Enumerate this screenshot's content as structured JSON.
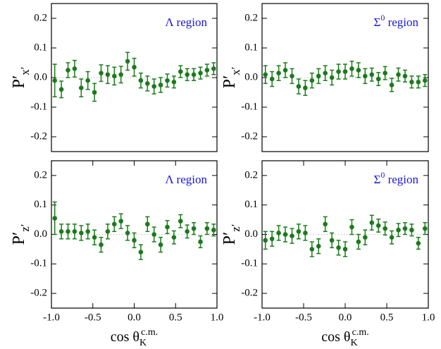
{
  "chart_data": [
    {
      "type": "scatter",
      "color": "#1b7a1b",
      "zero_line": true,
      "ylabel": {
        "base": "P′",
        "sub": "x′"
      },
      "annotation": {
        "base": "Λ region"
      },
      "x": [
        -0.96,
        -0.88,
        -0.8,
        -0.72,
        -0.64,
        -0.56,
        -0.48,
        -0.4,
        -0.32,
        -0.24,
        -0.16,
        -0.08,
        0,
        0.08,
        0.16,
        0.24,
        0.32,
        0.4,
        0.48,
        0.56,
        0.64,
        0.72,
        0.8,
        0.88,
        0.96
      ],
      "values": [
        -0.01,
        -0.04,
        0.025,
        0.03,
        -0.035,
        -0.01,
        -0.05,
        0.015,
        0.01,
        0.005,
        0.01,
        0.055,
        0.035,
        -0.01,
        -0.02,
        -0.03,
        -0.025,
        -0.01,
        -0.015,
        0.02,
        0.01,
        0.01,
        0.015,
        0.025,
        0.03
      ],
      "errors": [
        0.055,
        0.028,
        0.025,
        0.028,
        0.03,
        0.03,
        0.03,
        0.028,
        0.03,
        0.03,
        0.028,
        0.03,
        0.03,
        0.025,
        0.025,
        0.025,
        0.025,
        0.022,
        0.02,
        0.02,
        0.02,
        0.02,
        0.02,
        0.02,
        0.02
      ],
      "xlim": [
        -1,
        1
      ],
      "ylim": [
        -0.25,
        0.25
      ],
      "yticks": [
        -0.2,
        -0.1,
        {
          "value": 0,
          "label": "0.0"
        },
        0.1,
        0.2
      ]
    },
    {
      "type": "scatter",
      "color": "#1b7a1b",
      "zero_line": true,
      "ylabel": {
        "base": "P′",
        "sub": "x′"
      },
      "annotation": {
        "base": "Σ",
        "sup": "0",
        "rest": " region"
      },
      "x": [
        -0.96,
        -0.88,
        -0.8,
        -0.72,
        -0.64,
        -0.56,
        -0.48,
        -0.4,
        -0.32,
        -0.24,
        -0.16,
        -0.08,
        0,
        0.08,
        0.16,
        0.24,
        0.32,
        0.4,
        0.48,
        0.56,
        0.64,
        0.72,
        0.8,
        0.88,
        0.96
      ],
      "values": [
        0.01,
        -0.005,
        0.015,
        0.025,
        0.005,
        -0.03,
        -0.035,
        -0.01,
        0.005,
        0.015,
        0.0,
        0.02,
        0.02,
        0.03,
        0.025,
        0.005,
        0.01,
        -0.005,
        0.015,
        -0.025,
        0.01,
        0.005,
        -0.015,
        -0.015,
        -0.01
      ],
      "errors": [
        0.03,
        0.025,
        0.025,
        0.025,
        0.025,
        0.025,
        0.025,
        0.025,
        0.025,
        0.025,
        0.025,
        0.025,
        0.025,
        0.025,
        0.025,
        0.025,
        0.022,
        0.022,
        0.022,
        0.022,
        0.022,
        0.02,
        0.02,
        0.02,
        0.02
      ],
      "xlim": [
        -1,
        1
      ],
      "ylim": [
        -0.25,
        0.25
      ],
      "yticks": [
        -0.2,
        -0.1,
        {
          "value": 0,
          "label": "0.0"
        },
        0.1,
        0.2
      ]
    },
    {
      "type": "scatter",
      "color": "#1b7a1b",
      "zero_line": true,
      "ylabel": {
        "base": "P′",
        "sub": "z′"
      },
      "annotation": {
        "base": "Λ region"
      },
      "xlabel": {
        "base": "cos θ",
        "sub": "K",
        "sup": "c.m."
      },
      "x": [
        -0.96,
        -0.88,
        -0.8,
        -0.72,
        -0.64,
        -0.56,
        -0.48,
        -0.4,
        -0.32,
        -0.24,
        -0.16,
        -0.08,
        0,
        0.08,
        0.16,
        0.24,
        0.32,
        0.4,
        0.48,
        0.56,
        0.64,
        0.72,
        0.8,
        0.88,
        0.96
      ],
      "values": [
        0.055,
        0.01,
        0.01,
        0.01,
        0.005,
        0.01,
        -0.01,
        -0.035,
        0.01,
        0.035,
        0.045,
        0.005,
        -0.02,
        -0.06,
        0.035,
        0.0,
        -0.035,
        0.025,
        -0.01,
        0.045,
        0.01,
        0.02,
        -0.025,
        0.02,
        0.015
      ],
      "errors": [
        0.055,
        0.025,
        0.025,
        0.025,
        0.025,
        0.025,
        0.025,
        0.025,
        0.025,
        0.025,
        0.025,
        0.025,
        0.025,
        0.025,
        0.025,
        0.025,
        0.025,
        0.022,
        0.022,
        0.022,
        0.022,
        0.02,
        0.02,
        0.02,
        0.02
      ],
      "xlim": [
        -1,
        1
      ],
      "ylim": [
        -0.25,
        0.25
      ],
      "yticks": [
        -0.2,
        -0.1,
        {
          "value": 0,
          "label": "0.0"
        },
        0.1,
        0.2
      ],
      "xticks": [
        {
          "value": -1,
          "label": "-1.0"
        },
        -0.5,
        {
          "value": 0,
          "label": "0.0"
        },
        0.5,
        {
          "value": 1,
          "label": "1.0"
        }
      ]
    },
    {
      "type": "scatter",
      "color": "#1b7a1b",
      "zero_line": true,
      "ylabel": {
        "base": "P′",
        "sub": "z′"
      },
      "annotation": {
        "base": "Σ",
        "sup": "0",
        "rest": " region"
      },
      "xlabel": {
        "base": "cos θ",
        "sub": "K",
        "sup": "c.m."
      },
      "x": [
        -0.96,
        -0.88,
        -0.8,
        -0.72,
        -0.64,
        -0.56,
        -0.48,
        -0.4,
        -0.32,
        -0.24,
        -0.16,
        -0.08,
        0,
        0.08,
        0.16,
        0.24,
        0.32,
        0.4,
        0.48,
        0.56,
        0.64,
        0.72,
        0.8,
        0.88,
        0.96
      ],
      "values": [
        -0.02,
        -0.015,
        0.005,
        0.0,
        -0.005,
        0.01,
        0.005,
        -0.05,
        -0.04,
        0.035,
        -0.02,
        -0.045,
        -0.05,
        0.025,
        -0.025,
        -0.01,
        0.04,
        0.03,
        0.02,
        -0.01,
        0.015,
        0.02,
        0.015,
        -0.03,
        0.02
      ],
      "errors": [
        0.03,
        0.025,
        0.025,
        0.025,
        0.025,
        0.025,
        0.025,
        0.025,
        0.025,
        0.025,
        0.025,
        0.025,
        0.025,
        0.025,
        0.025,
        0.025,
        0.025,
        0.022,
        0.022,
        0.022,
        0.022,
        0.02,
        0.02,
        0.02,
        0.02
      ],
      "xlim": [
        -1,
        1
      ],
      "ylim": [
        -0.25,
        0.25
      ],
      "yticks": [
        -0.2,
        -0.1,
        {
          "value": 0,
          "label": "0.0"
        },
        0.1,
        0.2
      ],
      "xticks": [
        {
          "value": -1,
          "label": "-1.0"
        },
        -0.5,
        {
          "value": 0,
          "label": "0.0"
        },
        0.5,
        {
          "value": 1,
          "label": "1.0"
        }
      ]
    }
  ]
}
